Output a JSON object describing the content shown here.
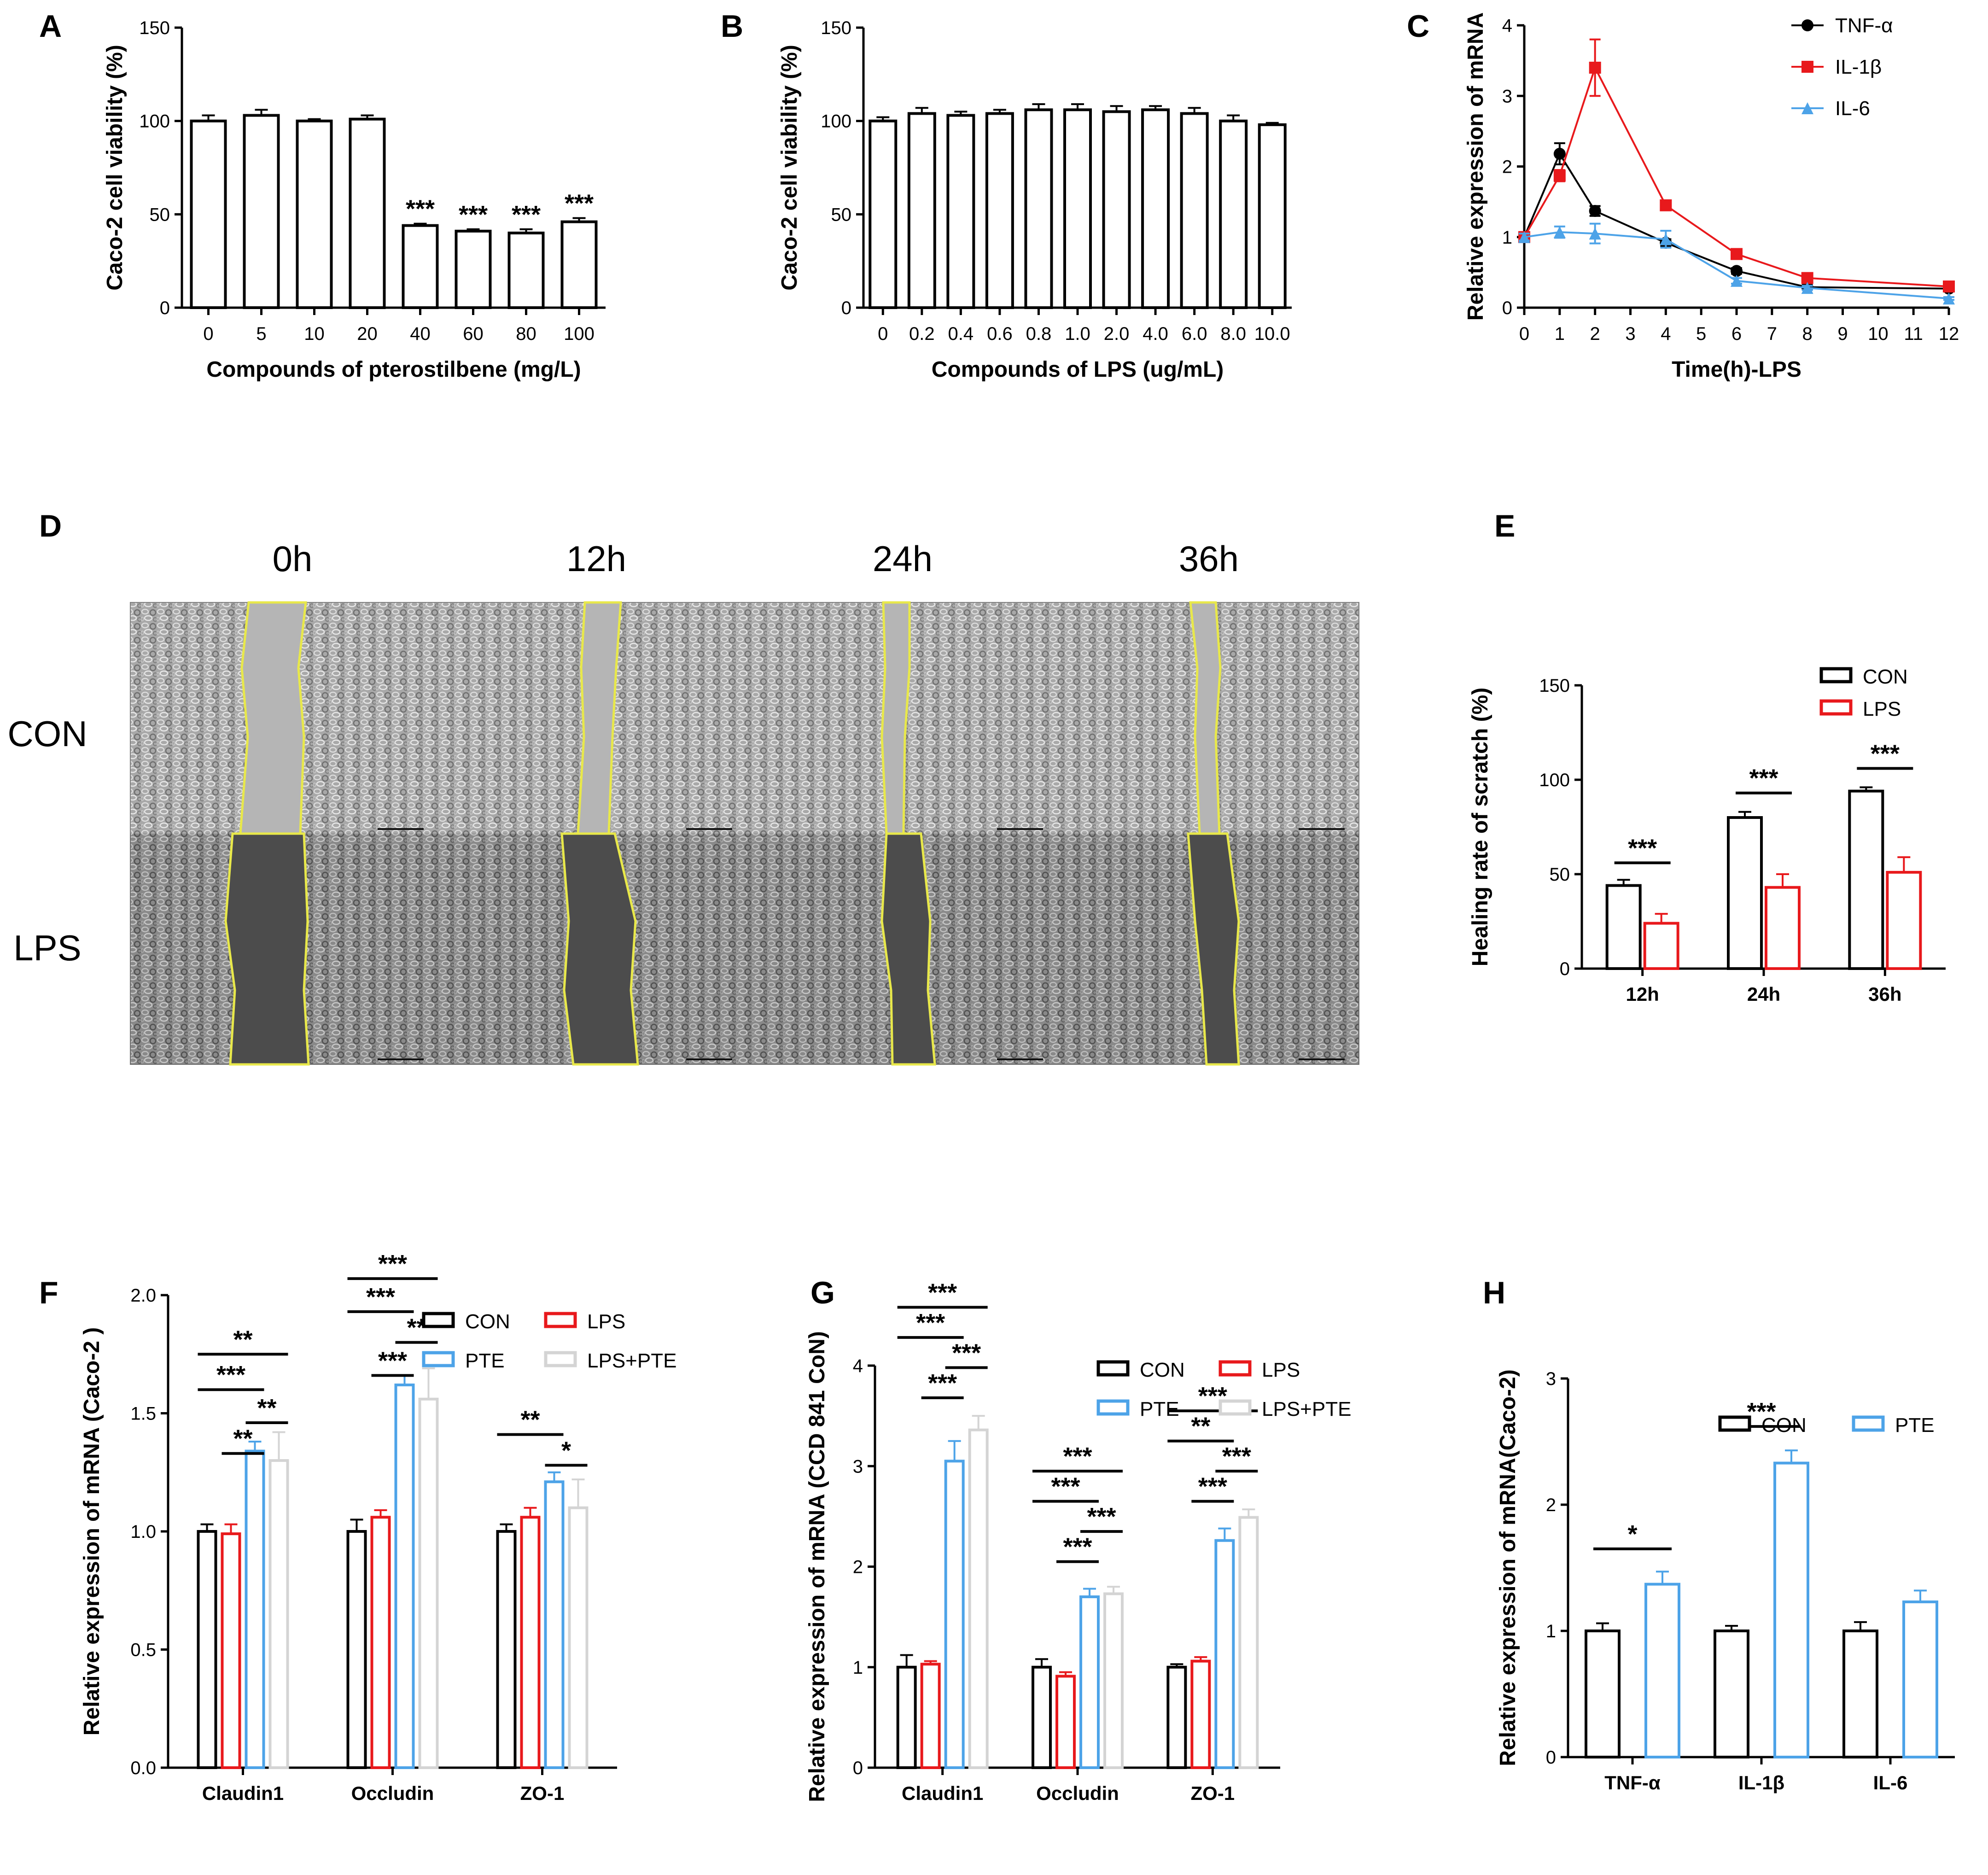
{
  "figure": {
    "panels": {
      "A": "A",
      "B": "B",
      "C": "C",
      "D": "D",
      "E": "E",
      "F": "F",
      "G": "G",
      "H": "H"
    }
  },
  "micrograph": {
    "time_labels": [
      "0h",
      "12h",
      "24h",
      "36h"
    ],
    "row_labels": [
      "CON",
      "LPS"
    ]
  },
  "chart_data": [
    {
      "id": "A",
      "type": "bar",
      "title": "",
      "xlabel": "Compounds of pterostilbene (mg/L)",
      "ylabel": "Caco-2 cell viability (%)",
      "ylim": [
        0,
        150
      ],
      "yticks": [
        "0",
        "50",
        "100",
        "150"
      ],
      "categories": [
        "0",
        "5",
        "10",
        "20",
        "40",
        "60",
        "80",
        "100"
      ],
      "series": [
        {
          "name": "viability",
          "color": "#000000",
          "values": [
            100,
            103,
            100,
            101,
            44,
            41,
            40,
            46
          ],
          "errors": [
            3,
            3,
            1,
            2,
            1,
            1,
            2,
            2
          ]
        }
      ],
      "annotations": [
        "",
        "",
        "",
        "",
        "***",
        "***",
        "***",
        "***"
      ]
    },
    {
      "id": "B",
      "type": "bar",
      "title": "",
      "xlabel": "Compounds of LPS (ug/mL)",
      "ylabel": "Caco-2 cell viability (%)",
      "ylim": [
        0,
        150
      ],
      "yticks": [
        "0",
        "50",
        "100",
        "150"
      ],
      "categories": [
        "0",
        "0.2",
        "0.4",
        "0.6",
        "0.8",
        "1.0",
        "2.0",
        "4.0",
        "6.0",
        "8.0",
        "10.0"
      ],
      "series": [
        {
          "name": "viability",
          "color": "#000000",
          "values": [
            100,
            104,
            103,
            104,
            106,
            106,
            105,
            106,
            104,
            100,
            98
          ],
          "errors": [
            2,
            3,
            2,
            2,
            3,
            3,
            3,
            2,
            3,
            3,
            1
          ]
        }
      ]
    },
    {
      "id": "C",
      "type": "line",
      "title": "",
      "xlabel": "Time(h)-LPS",
      "ylabel": "Relative expression of mRNA",
      "ylim": [
        0,
        4
      ],
      "xlim": [
        0,
        12
      ],
      "yticks": [
        "0",
        "1",
        "2",
        "3",
        "4"
      ],
      "xticks": [
        "0",
        "1",
        "2",
        "3",
        "4",
        "5",
        "6",
        "7",
        "8",
        "9",
        "10",
        "11",
        "12"
      ],
      "x": [
        0,
        1,
        2,
        4,
        6,
        8,
        12
      ],
      "series": [
        {
          "name": "TNF-α",
          "color": "#000000",
          "marker": "circle",
          "values": [
            1.0,
            2.18,
            1.37,
            0.92,
            0.52,
            0.29,
            0.27
          ],
          "errors": [
            0.05,
            0.15,
            0.07,
            0.05,
            0.04,
            0.03,
            0.03
          ]
        },
        {
          "name": "IL-1β",
          "color": "#e8191c",
          "marker": "square",
          "values": [
            1.0,
            1.87,
            3.4,
            1.45,
            0.76,
            0.42,
            0.3
          ],
          "errors": [
            0.05,
            0.08,
            0.4,
            0.06,
            0.07,
            0.03,
            0.03
          ]
        },
        {
          "name": "IL-6",
          "color": "#4da3e8",
          "marker": "triangle",
          "values": [
            1.0,
            1.07,
            1.05,
            0.97,
            0.38,
            0.28,
            0.13
          ],
          "errors": [
            0.05,
            0.08,
            0.14,
            0.12,
            0.04,
            0.03,
            0.02
          ]
        }
      ]
    },
    {
      "id": "E",
      "type": "bar",
      "title": "",
      "xlabel": "",
      "ylabel": "Healing rate of scratch (%)",
      "ylim": [
        0,
        150
      ],
      "yticks": [
        "0",
        "50",
        "100",
        "150"
      ],
      "categories": [
        "12h",
        "24h",
        "36h"
      ],
      "series": [
        {
          "name": "CON",
          "color": "#000000",
          "values": [
            44,
            80,
            94
          ],
          "errors": [
            3,
            3,
            2
          ]
        },
        {
          "name": "LPS",
          "color": "#e8191c",
          "values": [
            24,
            43,
            51
          ],
          "errors": [
            5,
            7,
            8
          ]
        }
      ],
      "comparisons": [
        {
          "group": 0,
          "from": 0,
          "to": 1,
          "label": "***",
          "y": 56
        },
        {
          "group": 1,
          "from": 0,
          "to": 1,
          "label": "***",
          "y": 93
        },
        {
          "group": 2,
          "from": 0,
          "to": 1,
          "label": "***",
          "y": 106
        }
      ]
    },
    {
      "id": "F",
      "type": "bar",
      "title": "",
      "xlabel": "",
      "ylabel": "Relative expression of mRNA (Caco-2 )",
      "ylim": [
        0,
        2.0
      ],
      "yticks": [
        "0.0",
        "0.5",
        "1.0",
        "1.5",
        "2.0"
      ],
      "categories": [
        "Claudin1",
        "Occludin",
        "ZO-1"
      ],
      "series": [
        {
          "name": "CON",
          "color": "#000000",
          "values": [
            1.0,
            1.0,
            1.0
          ],
          "errors": [
            0.03,
            0.05,
            0.03
          ]
        },
        {
          "name": "LPS",
          "color": "#e8191c",
          "values": [
            0.99,
            1.06,
            1.06
          ],
          "errors": [
            0.04,
            0.03,
            0.04
          ]
        },
        {
          "name": "PTE",
          "color": "#4da3e8",
          "values": [
            1.34,
            1.62,
            1.21
          ],
          "errors": [
            0.04,
            0.04,
            0.04
          ]
        },
        {
          "name": "LPS+PTE",
          "color": "#d4d4d4",
          "values": [
            1.3,
            1.56,
            1.1
          ],
          "errors": [
            0.12,
            0.13,
            0.12
          ]
        }
      ],
      "comparisons": [
        {
          "group": 0,
          "from": 2,
          "to": 3,
          "label": "**",
          "y": 1.46
        },
        {
          "group": 0,
          "from": 1,
          "to": 2,
          "label": "**",
          "y": 1.33
        },
        {
          "group": 0,
          "from": 0,
          "to": 2,
          "label": "***",
          "y": 1.6
        },
        {
          "group": 0,
          "from": 0,
          "to": 3,
          "label": "**",
          "y": 1.75
        },
        {
          "group": 1,
          "from": 1,
          "to": 2,
          "label": "***",
          "y": 1.66
        },
        {
          "group": 1,
          "from": 2,
          "to": 3,
          "label": "**",
          "y": 1.8
        },
        {
          "group": 1,
          "from": 0,
          "to": 2,
          "label": "***",
          "y": 1.93
        },
        {
          "group": 1,
          "from": 0,
          "to": 3,
          "label": "***",
          "y": 2.07
        },
        {
          "group": 2,
          "from": 2,
          "to": 3,
          "label": "*",
          "y": 1.28
        },
        {
          "group": 2,
          "from": 0,
          "to": 2,
          "label": "**",
          "y": 1.41
        }
      ]
    },
    {
      "id": "G",
      "type": "bar",
      "title": "",
      "xlabel": "",
      "ylabel": "Relative expression of mRNA (CCD 841 CoN)",
      "ylim": [
        0,
        4
      ],
      "yticks": [
        "0",
        "1",
        "2",
        "3",
        "4"
      ],
      "categories": [
        "Claudin1",
        "Occludin",
        "ZO-1"
      ],
      "series": [
        {
          "name": "CON",
          "color": "#000000",
          "values": [
            1.0,
            1.0,
            1.0
          ],
          "errors": [
            0.12,
            0.08,
            0.03
          ]
        },
        {
          "name": "LPS",
          "color": "#e8191c",
          "values": [
            1.03,
            0.91,
            1.06
          ],
          "errors": [
            0.03,
            0.04,
            0.04
          ]
        },
        {
          "name": "PTE",
          "color": "#4da3e8",
          "values": [
            3.05,
            1.7,
            2.26
          ],
          "errors": [
            0.2,
            0.08,
            0.12
          ]
        },
        {
          "name": "LPS+PTE",
          "color": "#d4d4d4",
          "values": [
            3.36,
            1.73,
            2.49
          ],
          "errors": [
            0.14,
            0.07,
            0.08
          ]
        }
      ],
      "comparisons": [
        {
          "group": 0,
          "from": 1,
          "to": 2,
          "label": "***",
          "y": 3.68
        },
        {
          "group": 0,
          "from": 2,
          "to": 3,
          "label": "***",
          "y": 3.98
        },
        {
          "group": 0,
          "from": 0,
          "to": 2,
          "label": "***",
          "y": 4.28
        },
        {
          "group": 0,
          "from": 0,
          "to": 3,
          "label": "***",
          "y": 4.58
        },
        {
          "group": 1,
          "from": 1,
          "to": 2,
          "label": "***",
          "y": 2.05
        },
        {
          "group": 1,
          "from": 2,
          "to": 3,
          "label": "***",
          "y": 2.35
        },
        {
          "group": 1,
          "from": 0,
          "to": 2,
          "label": "***",
          "y": 2.65
        },
        {
          "group": 1,
          "from": 0,
          "to": 3,
          "label": "***",
          "y": 2.95
        },
        {
          "group": 2,
          "from": 1,
          "to": 2,
          "label": "***",
          "y": 2.65
        },
        {
          "group": 2,
          "from": 2,
          "to": 3,
          "label": "***",
          "y": 2.95
        },
        {
          "group": 2,
          "from": 0,
          "to": 2,
          "label": "**",
          "y": 3.25
        },
        {
          "group": 2,
          "from": 0,
          "to": 3,
          "label": "***",
          "y": 3.55
        }
      ]
    },
    {
      "id": "H",
      "type": "bar",
      "title": "",
      "xlabel": "",
      "ylabel": "Relative expression of mRNA(Caco-2)",
      "ylim": [
        0,
        3
      ],
      "yticks": [
        "0",
        "1",
        "2",
        "3"
      ],
      "categories": [
        "TNF-α",
        "IL-1β",
        "IL-6"
      ],
      "series": [
        {
          "name": "CON",
          "color": "#000000",
          "values": [
            1.0,
            1.0,
            1.0
          ],
          "errors": [
            0.06,
            0.04,
            0.07
          ]
        },
        {
          "name": "PTE",
          "color": "#4da3e8",
          "values": [
            1.37,
            2.33,
            1.23
          ],
          "errors": [
            0.1,
            0.1,
            0.09
          ]
        }
      ],
      "comparisons": [
        {
          "group": 0,
          "from": 0,
          "to": 1,
          "label": "*",
          "y": 1.65
        },
        {
          "group": 1,
          "from": 0,
          "to": 1,
          "label": "***",
          "y": 2.62
        }
      ]
    }
  ]
}
